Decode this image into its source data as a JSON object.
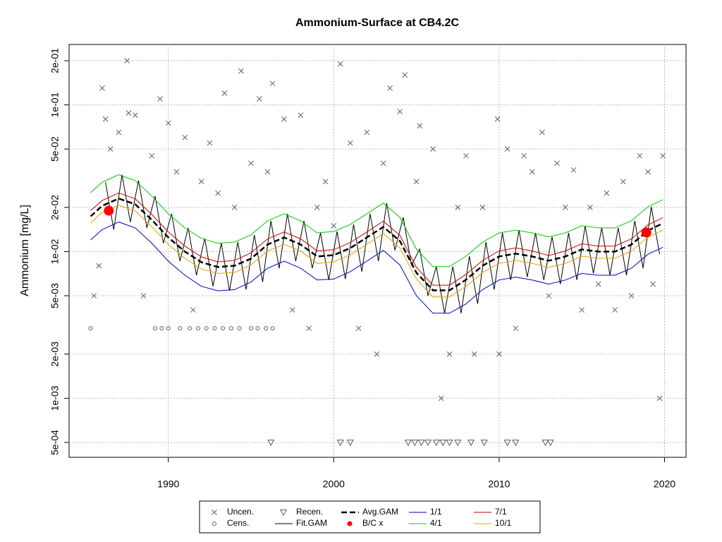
{
  "chart_data": {
    "type": "scatter-line",
    "title": "Ammonium-Surface at CB4.2C",
    "y_label": "Ammonium [mg/L]",
    "log_y": true,
    "grid": true,
    "legend": "bottom",
    "xlim": [
      1984,
      2021.3
    ],
    "xticks": [
      1990,
      2000,
      2010,
      2020
    ],
    "ylim": [
      0.000396,
      0.258
    ],
    "yticks": [
      {
        "value": 0.0005,
        "label": "5e-04"
      },
      {
        "value": 0.001,
        "label": "1e-03"
      },
      {
        "value": 0.002,
        "label": "2e-03"
      },
      {
        "value": 0.005,
        "label": "5e-03"
      },
      {
        "value": 0.01,
        "label": "1e-02"
      },
      {
        "value": 0.02,
        "label": "2e-02"
      },
      {
        "value": 0.05,
        "label": "5e-02"
      },
      {
        "value": 0.1,
        "label": "1e-01"
      },
      {
        "value": 0.2,
        "label": "2e-01"
      }
    ],
    "series": [
      {
        "name": "Uncen.",
        "marker": "x",
        "color": "#5a6068",
        "x": [
          1985.5,
          1985.8,
          1986.0,
          1986.2,
          1986.5,
          1987.0,
          1987.5,
          1987.6,
          1988.0,
          1988.5,
          1989.0,
          1989.5,
          1990.0,
          1990.5,
          1991.0,
          1991.5,
          1992.0,
          1992.5,
          1993.0,
          1993.4,
          1994.0,
          1994.4,
          1995.0,
          1995.5,
          1996.0,
          1996.3,
          1997.0,
          1997.5,
          1998.0,
          1998.5,
          1999.0,
          1999.5,
          2000.0,
          2000.4,
          2001.0,
          2001.5,
          2002.0,
          2002.6,
          2003.0,
          2003.4,
          2004.0,
          2004.3,
          2005.0,
          2005.2,
          2006.0,
          2006.5,
          2007.0,
          2007.5,
          2008.0,
          2008.5,
          2009.0,
          2009.9,
          2010.0,
          2010.5,
          2011.0,
          2011.5,
          2012.0,
          2012.6,
          2013.0,
          2013.5,
          2014.0,
          2014.5,
          2015.0,
          2015.5,
          2016.0,
          2016.5,
          2017.0,
          2017.5,
          2018.0,
          2018.5,
          2019.0,
          2019.3,
          2019.7,
          2019.9
        ],
        "values": [
          0.005,
          0.008,
          0.13,
          0.08,
          0.05,
          0.065,
          0.2,
          0.088,
          0.085,
          0.005,
          0.045,
          0.11,
          0.075,
          0.035,
          0.06,
          0.004,
          0.03,
          0.055,
          0.025,
          0.12,
          0.02,
          0.17,
          0.04,
          0.11,
          0.035,
          0.14,
          0.08,
          0.004,
          0.085,
          0.003,
          0.02,
          0.03,
          0.015,
          0.19,
          0.055,
          0.003,
          0.065,
          0.002,
          0.04,
          0.13,
          0.09,
          0.16,
          0.03,
          0.072,
          0.05,
          0.001,
          0.002,
          0.02,
          0.045,
          0.002,
          0.02,
          0.08,
          0.002,
          0.05,
          0.003,
          0.045,
          0.035,
          0.065,
          0.005,
          0.04,
          0.02,
          0.036,
          0.004,
          0.02,
          0.006,
          0.025,
          0.004,
          0.03,
          0.005,
          0.045,
          0.035,
          0.006,
          0.001,
          0.045
        ]
      },
      {
        "name": "Cens.",
        "marker": "o",
        "color": "#5a6068",
        "x": [
          1985.3,
          1989.2,
          1989.6,
          1990.0,
          1990.7,
          1991.3,
          1991.8,
          1992.3,
          1992.8,
          1993.3,
          1993.8,
          1994.3,
          1995.0,
          1995.4,
          1995.9,
          1996.3
        ],
        "values": [
          0.003,
          0.003,
          0.003,
          0.003,
          0.003,
          0.003,
          0.003,
          0.003,
          0.003,
          0.003,
          0.003,
          0.003,
          0.003,
          0.003,
          0.003,
          0.003
        ]
      },
      {
        "name": "Recen.",
        "marker": "v",
        "color": "#5a6068",
        "x": [
          1996.2,
          2000.4,
          2001.0,
          2004.5,
          2004.9,
          2005.3,
          2005.7,
          2006.2,
          2006.6,
          2007.0,
          2007.5,
          2008.3,
          2009.1,
          2010.5,
          2011.0,
          2012.8,
          2013.1
        ],
        "values": [
          0.0005,
          0.0005,
          0.0005,
          0.0005,
          0.0005,
          0.0005,
          0.0005,
          0.0005,
          0.0005,
          0.0005,
          0.0005,
          0.0005,
          0.0005,
          0.0005,
          0.0005,
          0.0005,
          0.0005
        ]
      },
      {
        "name": "Fit.GAM",
        "line": "solid",
        "color": "#000000",
        "x": [
          1986.2,
          1986.7,
          1987.2,
          1987.7,
          1988.2,
          1988.7,
          1989.2,
          1989.7,
          1990.2,
          1990.7,
          1991.2,
          1991.7,
          1992.2,
          1992.7,
          1993.2,
          1993.7,
          1994.2,
          1994.7,
          1995.2,
          1995.7,
          1996.2,
          1996.7,
          1997.2,
          1997.7,
          1998.2,
          1998.7,
          1999.2,
          1999.7,
          2000.2,
          2000.7,
          2001.2,
          2001.7,
          2002.2,
          2002.7,
          2003.2,
          2003.7,
          2004.2,
          2004.7,
          2005.2,
          2005.7,
          2006.2,
          2006.7,
          2007.2,
          2007.7,
          2008.2,
          2008.7,
          2009.2,
          2009.7,
          2010.2,
          2010.7,
          2011.2,
          2011.7,
          2012.2,
          2012.7,
          2013.2,
          2013.7,
          2014.2,
          2014.7,
          2015.2,
          2015.7,
          2016.2,
          2016.7,
          2017.2,
          2017.7,
          2018.2,
          2018.7,
          2019.2,
          2019.7
        ],
        "values": [
          0.0297,
          0.0141,
          0.0334,
          0.0159,
          0.0305,
          0.0145,
          0.0239,
          0.0114,
          0.0181,
          0.0086,
          0.0145,
          0.0069,
          0.0123,
          0.0058,
          0.0114,
          0.0054,
          0.0116,
          0.0055,
          0.013,
          0.0062,
          0.0162,
          0.0077,
          0.0181,
          0.0086,
          0.0162,
          0.0077,
          0.0134,
          0.0064,
          0.0137,
          0.0065,
          0.0153,
          0.0073,
          0.0181,
          0.0086,
          0.0214,
          0.0102,
          0.0171,
          0.0081,
          0.0104,
          0.005,
          0.0079,
          0.0038,
          0.0079,
          0.0038,
          0.0093,
          0.0044,
          0.0116,
          0.0055,
          0.0134,
          0.0064,
          0.014,
          0.0067,
          0.0134,
          0.0064,
          0.0126,
          0.006,
          0.0134,
          0.0064,
          0.015,
          0.0071,
          0.0145,
          0.0069,
          0.0145,
          0.0069,
          0.0162,
          0.0077,
          0.0202,
          0.0096
        ]
      },
      {
        "name": "Avg.GAM",
        "line": "dashed",
        "color": "#000000",
        "x": [
          1985.3,
          1986,
          1987,
          1988,
          1989,
          1990,
          1991,
          1992,
          1993,
          1994,
          1995,
          1996,
          1997,
          1998,
          1999,
          2000,
          2001,
          2002,
          2003,
          2004,
          2005,
          2006,
          2007,
          2008,
          2009,
          2010,
          2011,
          2012,
          2013,
          2014,
          2015,
          2016,
          2017,
          2018,
          2019,
          2019.9
        ],
        "values": [
          0.0174,
          0.0205,
          0.023,
          0.021,
          0.01645,
          0.01248,
          0.01,
          0.00847,
          0.00784,
          0.00801,
          0.00895,
          0.01117,
          0.01248,
          0.01117,
          0.00926,
          0.00946,
          0.01057,
          0.01248,
          0.01473,
          0.0118,
          0.00718,
          0.00544,
          0.00544,
          0.00643,
          0.00801,
          0.00926,
          0.00968,
          0.00926,
          0.00866,
          0.00926,
          0.01034,
          0.01,
          0.01,
          0.01117,
          0.01394,
          0.01557
        ]
      },
      {
        "name": "B/C x",
        "marker": "dot",
        "color": "#ff0000",
        "x": [
          1986.4,
          2018.9
        ],
        "values": [
          0.019,
          0.0135
        ]
      },
      {
        "name": "1/1",
        "line": "solid",
        "color": "#0000cc",
        "x": [
          1985.3,
          1986,
          1987,
          1988,
          1989,
          1990,
          1991,
          1992,
          1993,
          1994,
          1995,
          1996,
          1997,
          1998,
          1999,
          2000,
          2001,
          2002,
          2003,
          2004,
          2005,
          2006,
          2007,
          2008,
          2009,
          2010,
          2011,
          2012,
          2013,
          2014,
          2015,
          2016,
          2017,
          2018,
          2019,
          2019.9
        ],
        "values": [
          0.012,
          0.0141,
          0.0159,
          0.0145,
          0.0114,
          0.0086,
          0.0069,
          0.0058,
          0.0054,
          0.0055,
          0.0062,
          0.0077,
          0.0086,
          0.0077,
          0.0064,
          0.0065,
          0.0073,
          0.0086,
          0.0102,
          0.0081,
          0.005,
          0.0038,
          0.0038,
          0.0044,
          0.0055,
          0.0064,
          0.0067,
          0.0064,
          0.006,
          0.0064,
          0.0071,
          0.0069,
          0.0069,
          0.0077,
          0.0096,
          0.0107
        ]
      },
      {
        "name": "4/1",
        "line": "solid",
        "color": "#00cc00",
        "x": [
          1985.3,
          1986,
          1987,
          1988,
          1989,
          1990,
          1991,
          1992,
          1993,
          1994,
          1995,
          1996,
          1997,
          1998,
          1999,
          2000,
          2001,
          2002,
          2003,
          2004,
          2005,
          2006,
          2007,
          2008,
          2009,
          2010,
          2011,
          2012,
          2013,
          2014,
          2015,
          2016,
          2017,
          2018,
          2019,
          2019.9
        ],
        "values": [
          0.0252,
          0.0297,
          0.0334,
          0.0305,
          0.0239,
          0.0181,
          0.0145,
          0.0123,
          0.0114,
          0.0116,
          0.013,
          0.0162,
          0.0181,
          0.0162,
          0.0134,
          0.0137,
          0.0153,
          0.0181,
          0.0214,
          0.0171,
          0.0104,
          0.0079,
          0.0079,
          0.0093,
          0.0116,
          0.0134,
          0.014,
          0.0134,
          0.0126,
          0.0134,
          0.015,
          0.0145,
          0.0145,
          0.0162,
          0.0202,
          0.0226
        ]
      },
      {
        "name": "7/1",
        "line": "solid",
        "color": "#cc0000",
        "x": [
          1985.3,
          1986,
          1987,
          1988,
          1989,
          1990,
          1991,
          1992,
          1993,
          1994,
          1995,
          1996,
          1997,
          1998,
          1999,
          2000,
          2001,
          2002,
          2003,
          2004,
          2005,
          2006,
          2007,
          2008,
          2009,
          2010,
          2011,
          2012,
          2013,
          2014,
          2015,
          2016,
          2017,
          2018,
          2019,
          2019.9
        ],
        "values": [
          0.019,
          0.0223,
          0.0251,
          0.0229,
          0.0179,
          0.0136,
          0.0109,
          0.0092,
          0.0085,
          0.0087,
          0.0098,
          0.0122,
          0.0136,
          0.0122,
          0.0101,
          0.0103,
          0.0115,
          0.0136,
          0.0161,
          0.0129,
          0.0078,
          0.0059,
          0.0059,
          0.007,
          0.0087,
          0.0101,
          0.0106,
          0.0101,
          0.0094,
          0.0101,
          0.0113,
          0.0109,
          0.0109,
          0.0122,
          0.0152,
          0.017
        ]
      },
      {
        "name": "10/1",
        "line": "solid",
        "color": "#e6a000",
        "x": [
          1985.3,
          1986,
          1987,
          1988,
          1989,
          1990,
          1991,
          1992,
          1993,
          1994,
          1995,
          1996,
          1997,
          1998,
          1999,
          2000,
          2001,
          2002,
          2003,
          2004,
          2005,
          2006,
          2007,
          2008,
          2009,
          2010,
          2011,
          2012,
          2013,
          2014,
          2015,
          2016,
          2017,
          2018,
          2019,
          2019.9
        ],
        "values": [
          0.0157,
          0.0185,
          0.0207,
          0.0189,
          0.0148,
          0.0112,
          0.009,
          0.0076,
          0.0071,
          0.0072,
          0.0081,
          0.0101,
          0.0112,
          0.0101,
          0.0083,
          0.0085,
          0.0095,
          0.0112,
          0.0133,
          0.0106,
          0.0065,
          0.0049,
          0.0049,
          0.0058,
          0.0072,
          0.0083,
          0.0087,
          0.0083,
          0.0078,
          0.0083,
          0.0093,
          0.009,
          0.009,
          0.0101,
          0.0125,
          0.014
        ]
      }
    ]
  }
}
